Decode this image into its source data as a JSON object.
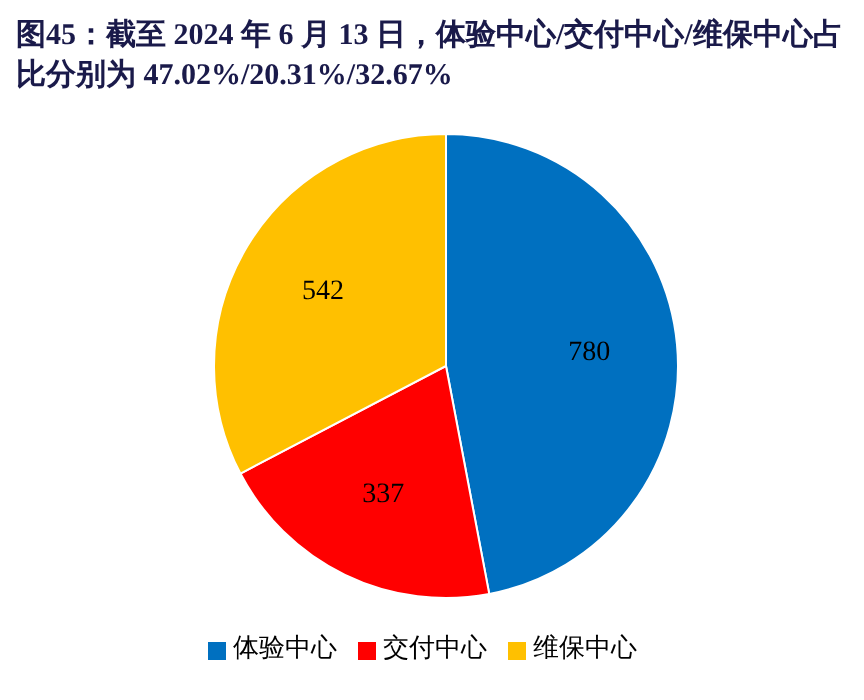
{
  "chart_data": {
    "type": "pie",
    "title": "图45：截至 2024 年 6 月 13 日，体验中心/交付中心/维保中心占比分别为 47.02%/20.31%/32.67%",
    "categories": [
      "体验中心",
      "交付中心",
      "维保中心"
    ],
    "values": [
      780,
      337,
      542
    ],
    "colors": [
      "#0070c0",
      "#ff0000",
      "#ffc000"
    ],
    "data_labels": true,
    "legend": "bottom"
  }
}
